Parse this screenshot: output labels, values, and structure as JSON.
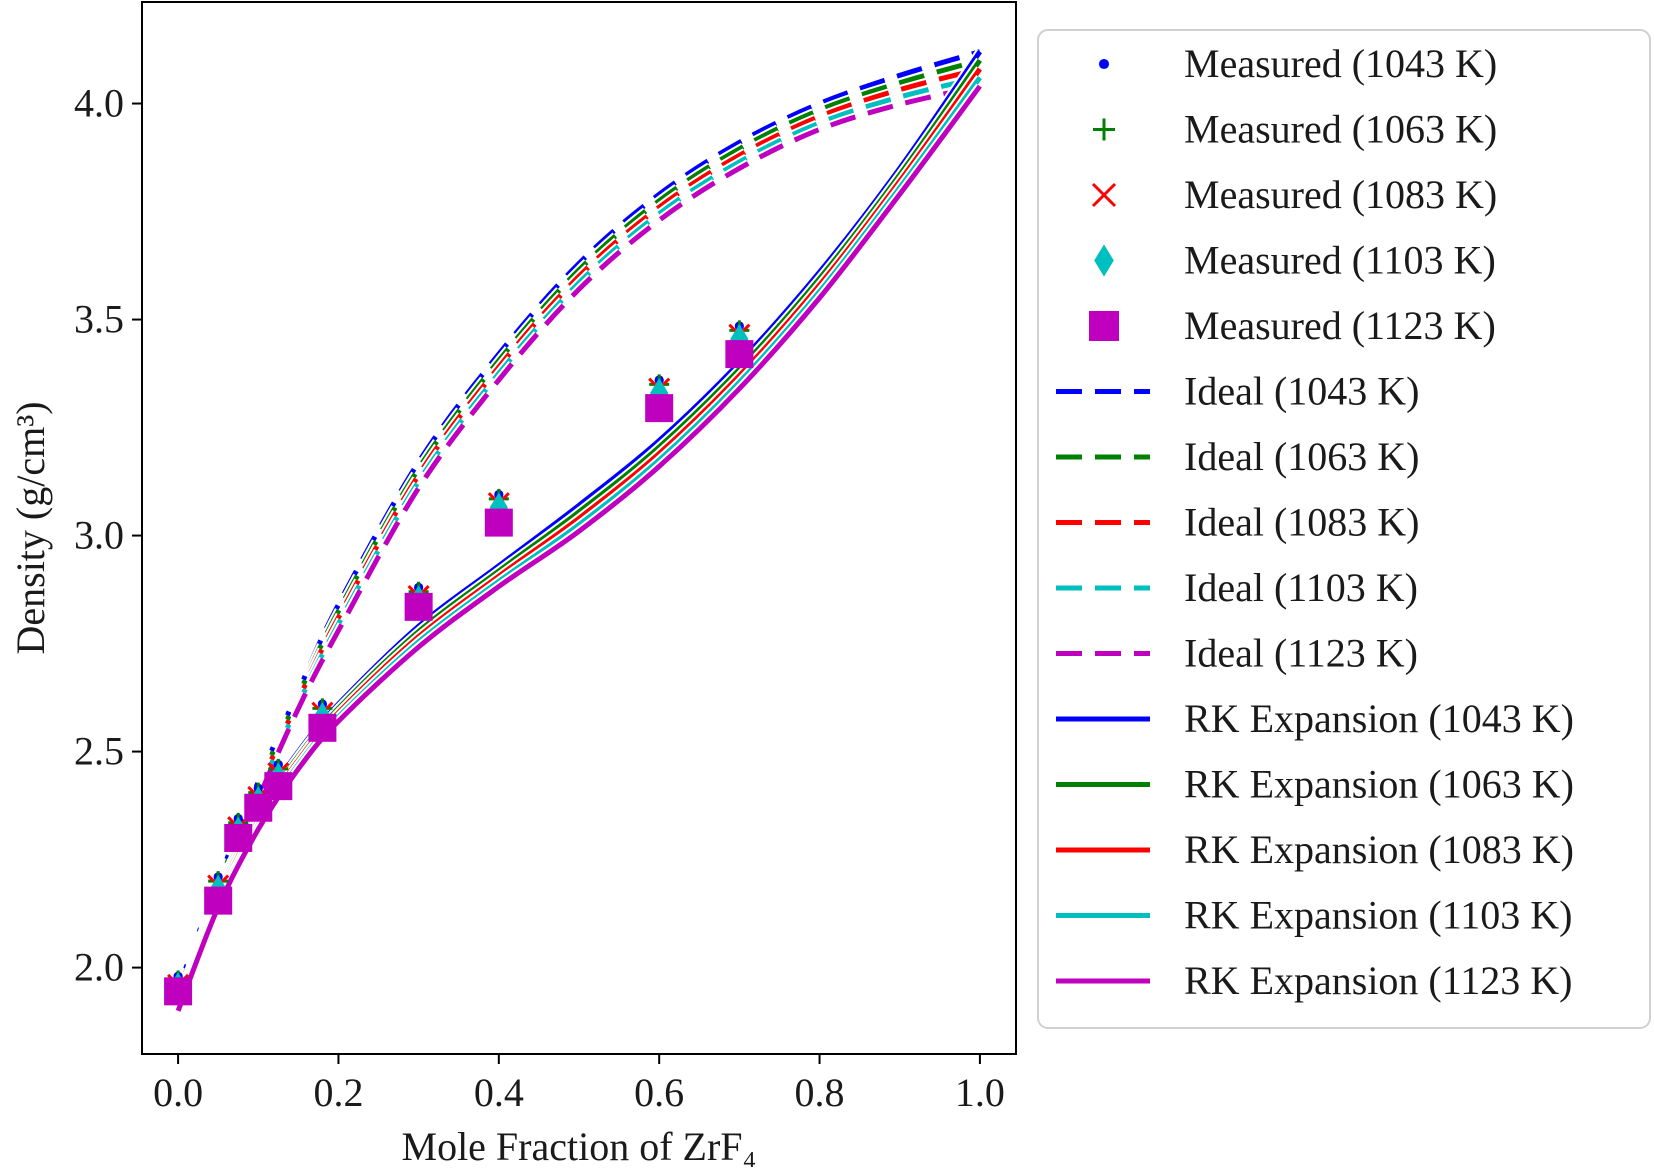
{
  "chart_data": {
    "type": "line",
    "xlabel": "Mole Fraction of ZrF₄",
    "ylabel": "Density (g/cm³)",
    "xlim": [
      -0.045,
      1.045
    ],
    "ylim": [
      1.8,
      4.235
    ],
    "xticks": [
      0.0,
      0.2,
      0.4,
      0.6,
      0.8,
      1.0
    ],
    "xtick_labels": [
      "0.0",
      "0.2",
      "0.4",
      "0.6",
      "0.8",
      "1.0"
    ],
    "yticks": [
      2.0,
      2.5,
      3.0,
      3.5,
      4.0
    ],
    "ytick_labels": [
      "2.0",
      "2.5",
      "3.0",
      "3.5",
      "4.0"
    ],
    "grid": false,
    "legend_position": "outside-right",
    "series": [
      {
        "name": "Measured (1043 K)",
        "kind": "scatter",
        "marker": "dot",
        "color": "#0000ff",
        "x": [
          0.0,
          0.05,
          0.075,
          0.1,
          0.125,
          0.18,
          0.3,
          0.4,
          0.6,
          0.7
        ],
        "y": [
          1.98,
          2.21,
          2.345,
          2.415,
          2.47,
          2.61,
          2.88,
          3.095,
          3.36,
          3.485
        ]
      },
      {
        "name": "Measured (1063 K)",
        "kind": "scatter",
        "marker": "plus",
        "color": "#008000",
        "x": [
          0.0,
          0.05,
          0.075,
          0.1,
          0.125,
          0.18,
          0.3,
          0.4,
          0.6,
          0.7
        ],
        "y": [
          1.97,
          2.2,
          2.335,
          2.405,
          2.46,
          2.6,
          2.87,
          3.085,
          3.35,
          3.475
        ]
      },
      {
        "name": "Measured (1083 K)",
        "kind": "scatter",
        "marker": "x",
        "color": "#ff0000",
        "x": [
          0.0,
          0.05,
          0.075,
          0.1,
          0.125,
          0.18,
          0.3,
          0.4,
          0.6,
          0.7
        ],
        "y": [
          1.96,
          2.19,
          2.325,
          2.395,
          2.45,
          2.59,
          2.86,
          3.075,
          3.34,
          3.465
        ]
      },
      {
        "name": "Measured (1103 K)",
        "kind": "scatter",
        "marker": "diamond",
        "color": "#00bfbf",
        "x": [
          0.0,
          0.05,
          0.075,
          0.1,
          0.125,
          0.18,
          0.3,
          0.4,
          0.6,
          0.7
        ],
        "y": [
          1.955,
          2.18,
          2.315,
          2.385,
          2.44,
          2.58,
          2.85,
          3.065,
          3.33,
          3.455
        ]
      },
      {
        "name": "Measured (1123 K)",
        "kind": "scatter",
        "marker": "square",
        "color": "#bf00bf",
        "x": [
          0.0,
          0.05,
          0.075,
          0.1,
          0.125,
          0.18,
          0.3,
          0.4,
          0.6,
          0.7
        ],
        "y": [
          1.945,
          2.155,
          2.3,
          2.37,
          2.42,
          2.555,
          2.835,
          3.03,
          3.295,
          3.42
        ]
      },
      {
        "name": "Ideal (1043 K)",
        "kind": "line",
        "dash": "dashed",
        "color": "#0000ff",
        "x": [
          0.0,
          0.05,
          0.1,
          0.15,
          0.2,
          0.3,
          0.4,
          0.5,
          0.6,
          0.7,
          0.8,
          0.9,
          1.0
        ],
        "y": [
          1.95,
          2.2,
          2.43,
          2.64,
          2.84,
          3.17,
          3.42,
          3.63,
          3.79,
          3.91,
          4.0,
          4.065,
          4.12
        ]
      },
      {
        "name": "Ideal (1063 K)",
        "kind": "line",
        "dash": "dashed",
        "color": "#008000",
        "x": [
          0.0,
          0.05,
          0.1,
          0.15,
          0.2,
          0.3,
          0.4,
          0.5,
          0.6,
          0.7,
          0.8,
          0.9,
          1.0
        ],
        "y": [
          1.94,
          2.19,
          2.42,
          2.63,
          2.825,
          3.155,
          3.405,
          3.615,
          3.775,
          3.895,
          3.985,
          4.048,
          4.1
        ]
      },
      {
        "name": "Ideal (1083 K)",
        "kind": "line",
        "dash": "dashed",
        "color": "#ff0000",
        "x": [
          0.0,
          0.05,
          0.1,
          0.15,
          0.2,
          0.3,
          0.4,
          0.5,
          0.6,
          0.7,
          0.8,
          0.9,
          1.0
        ],
        "y": [
          1.93,
          2.18,
          2.41,
          2.62,
          2.81,
          3.14,
          3.39,
          3.6,
          3.76,
          3.88,
          3.97,
          4.032,
          4.08
        ]
      },
      {
        "name": "Ideal (1103 K)",
        "kind": "line",
        "dash": "dashed",
        "color": "#00bfbf",
        "x": [
          0.0,
          0.05,
          0.1,
          0.15,
          0.2,
          0.3,
          0.4,
          0.5,
          0.6,
          0.7,
          0.8,
          0.9,
          1.0
        ],
        "y": [
          1.92,
          2.17,
          2.4,
          2.61,
          2.795,
          3.125,
          3.375,
          3.585,
          3.745,
          3.865,
          3.955,
          4.015,
          4.06
        ]
      },
      {
        "name": "Ideal (1123 K)",
        "kind": "line",
        "dash": "dashed",
        "color": "#bf00bf",
        "x": [
          0.0,
          0.05,
          0.1,
          0.15,
          0.2,
          0.3,
          0.4,
          0.5,
          0.6,
          0.7,
          0.8,
          0.9,
          1.0
        ],
        "y": [
          1.91,
          2.16,
          2.39,
          2.6,
          2.78,
          3.11,
          3.36,
          3.57,
          3.73,
          3.85,
          3.94,
          3.998,
          4.04
        ]
      },
      {
        "name": "RK Expansion (1043 K)",
        "kind": "line",
        "dash": "solid",
        "color": "#0000ff",
        "x": [
          0.0,
          0.05,
          0.1,
          0.15,
          0.2,
          0.3,
          0.4,
          0.5,
          0.6,
          0.7,
          0.8,
          0.9,
          1.0
        ],
        "y": [
          1.92,
          2.18,
          2.36,
          2.5,
          2.61,
          2.79,
          2.93,
          3.07,
          3.22,
          3.4,
          3.61,
          3.85,
          4.12
        ]
      },
      {
        "name": "RK Expansion (1063 K)",
        "kind": "line",
        "dash": "solid",
        "color": "#008000",
        "x": [
          0.0,
          0.05,
          0.1,
          0.15,
          0.2,
          0.3,
          0.4,
          0.5,
          0.6,
          0.7,
          0.8,
          0.9,
          1.0
        ],
        "y": [
          1.915,
          2.17,
          2.35,
          2.49,
          2.6,
          2.778,
          2.918,
          3.055,
          3.205,
          3.385,
          3.595,
          3.835,
          4.1
        ]
      },
      {
        "name": "RK Expansion (1083 K)",
        "kind": "line",
        "dash": "solid",
        "color": "#ff0000",
        "x": [
          0.0,
          0.05,
          0.1,
          0.15,
          0.2,
          0.3,
          0.4,
          0.5,
          0.6,
          0.7,
          0.8,
          0.9,
          1.0
        ],
        "y": [
          1.91,
          2.16,
          2.34,
          2.48,
          2.59,
          2.766,
          2.906,
          3.04,
          3.19,
          3.37,
          3.58,
          3.82,
          4.08
        ]
      },
      {
        "name": "RK Expansion (1103 K)",
        "kind": "line",
        "dash": "solid",
        "color": "#00bfbf",
        "x": [
          0.0,
          0.05,
          0.1,
          0.15,
          0.2,
          0.3,
          0.4,
          0.5,
          0.6,
          0.7,
          0.8,
          0.9,
          1.0
        ],
        "y": [
          1.905,
          2.15,
          2.33,
          2.47,
          2.58,
          2.754,
          2.894,
          3.025,
          3.175,
          3.355,
          3.565,
          3.805,
          4.06
        ]
      },
      {
        "name": "RK Expansion (1123 K)",
        "kind": "line",
        "dash": "solid",
        "color": "#bf00bf",
        "x": [
          0.0,
          0.05,
          0.1,
          0.15,
          0.2,
          0.3,
          0.4,
          0.5,
          0.6,
          0.7,
          0.8,
          0.9,
          1.0
        ],
        "y": [
          1.9,
          2.14,
          2.32,
          2.46,
          2.57,
          2.742,
          2.882,
          3.01,
          3.16,
          3.34,
          3.55,
          3.79,
          4.04
        ]
      }
    ]
  }
}
